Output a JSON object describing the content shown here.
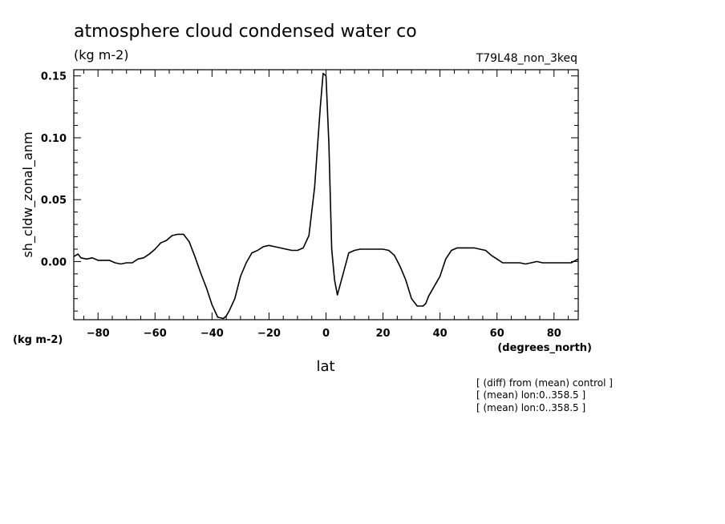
{
  "chart_data": {
    "type": "line",
    "title": "atmosphere cloud condensed water co",
    "subtitle": "(kg m-2)",
    "run_label": "T79L48_non_3keq",
    "xlabel": "lat",
    "xunits": "(degrees_north)",
    "ylabel": "sh_cldw_zonal_anm",
    "yunits": "(kg m-2)",
    "xlim": [
      -88.5,
      88.5
    ],
    "ylim": [
      -0.047,
      0.155
    ],
    "xticks": [
      -80,
      -60,
      -40,
      -20,
      0,
      20,
      40,
      60,
      80
    ],
    "xtick_labels": [
      "−80",
      "−60",
      "−40",
      "−20",
      "0",
      "20",
      "40",
      "60",
      "80"
    ],
    "yticks": [
      0.0,
      0.05,
      0.1,
      0.15
    ],
    "ytick_labels": [
      "0.00",
      "0.05",
      "0.10",
      "0.15"
    ],
    "grid": false,
    "notes": [
      "[ (diff) from (mean) control ]",
      "[ (mean) lon:0..358.5 ]",
      "[ (mean) lon:0..358.5 ]"
    ],
    "series": [
      {
        "x": [
          -88.5,
          -87,
          -86,
          -84,
          -82,
          -80,
          -78,
          -76,
          -74,
          -72,
          -70,
          -68,
          -66,
          -64,
          -62,
          -60,
          -58,
          -56,
          -54,
          -52,
          -50,
          -48,
          -46,
          -44,
          -42,
          -40,
          -38,
          -36,
          -35,
          -34,
          -32,
          -30,
          -28,
          -26,
          -24,
          -22,
          -20,
          -18,
          -16,
          -14,
          -12,
          -10,
          -8,
          -6,
          -4,
          -2,
          -1,
          0,
          1,
          2,
          3,
          4,
          6,
          8,
          10,
          12,
          14,
          16,
          18,
          20,
          22,
          24,
          26,
          28,
          30,
          32,
          34,
          35,
          36,
          38,
          40,
          42,
          44,
          46,
          48,
          50,
          52,
          54,
          56,
          58,
          60,
          62,
          64,
          66,
          68,
          70,
          72,
          74,
          76,
          78,
          80,
          82,
          84,
          86,
          88.5
        ],
        "y": [
          0.004,
          0.006,
          0.003,
          0.002,
          0.003,
          0.001,
          0.001,
          0.001,
          -0.001,
          -0.002,
          -0.001,
          -0.001,
          0.002,
          0.003,
          0.006,
          0.01,
          0.015,
          0.017,
          0.021,
          0.022,
          0.022,
          0.016,
          0.004,
          -0.009,
          -0.021,
          -0.035,
          -0.045,
          -0.046,
          -0.044,
          -0.04,
          -0.03,
          -0.012,
          -0.001,
          0.007,
          0.009,
          0.012,
          0.013,
          0.012,
          0.011,
          0.01,
          0.009,
          0.009,
          0.011,
          0.021,
          0.06,
          0.125,
          0.152,
          0.15,
          0.095,
          0.01,
          -0.015,
          -0.027,
          -0.01,
          0.007,
          0.009,
          0.01,
          0.01,
          0.01,
          0.01,
          0.01,
          0.009,
          0.005,
          -0.004,
          -0.015,
          -0.03,
          -0.036,
          -0.036,
          -0.034,
          -0.028,
          -0.02,
          -0.012,
          0.002,
          0.009,
          0.011,
          0.011,
          0.011,
          0.011,
          0.01,
          0.009,
          0.005,
          0.002,
          -0.001,
          -0.001,
          -0.001,
          -0.001,
          -0.002,
          -0.001,
          0.0,
          -0.001,
          -0.001,
          -0.001,
          -0.001,
          -0.001,
          -0.001,
          0.002
        ]
      }
    ]
  }
}
